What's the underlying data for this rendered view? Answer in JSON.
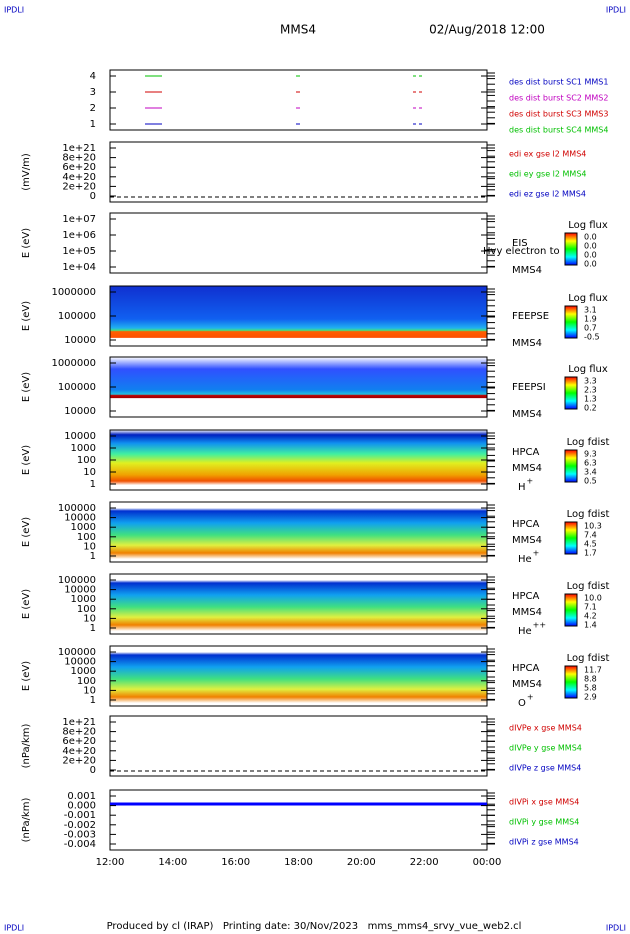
{
  "header": {
    "left": "IPDLI",
    "right": "IPDLI",
    "mission": "MMS4",
    "date": "02/Aug/2018 12:00"
  },
  "footer": {
    "left": "IPDLI",
    "right": "IPDLI",
    "text": "Produced by cl (IRAP)   Printing date: 30/Nov/2023   mms_mms4_srvy_vue_web2.cl"
  },
  "xticks": [
    "12:00",
    "14:00",
    "16:00",
    "18:00",
    "20:00",
    "22:00",
    "00:00"
  ],
  "panels": [
    {
      "yticks": [
        "4",
        "3",
        "2",
        "1"
      ],
      "legend": [
        {
          "text": "des dist burst SC1 MMS1",
          "color": "#0000c0"
        },
        {
          "text": "des dist burst SC2 MMS2",
          "color": "#c000c0"
        },
        {
          "text": "des dist burst SC3 MMS3",
          "color": "#d00000"
        },
        {
          "text": "des dist burst SC4 MMS4",
          "color": "#00c000"
        }
      ]
    },
    {
      "ylabel": "(mV/m)",
      "yticks": [
        "1e+21",
        "8e+20",
        "6e+20",
        "4e+20",
        "2e+20",
        "0"
      ],
      "legend": [
        {
          "text": "edi ex gse l2 MMS4",
          "color": "#d00000"
        },
        {
          "text": "edi ey gse l2 MMS4",
          "color": "#00c000"
        },
        {
          "text": "edi ez gse l2 MMS4",
          "color": "#0000c0"
        }
      ]
    },
    {
      "ylabel": "E (eV)",
      "yticks": [
        "1e+07",
        "1e+06",
        "1e+05",
        "1e+04"
      ],
      "side": [
        "EIS",
        "MMS4"
      ],
      "note": "Hvy electron to",
      "colorbar": {
        "title": "Log flux",
        "ticks": [
          "0.0",
          "0.0",
          "0.0",
          "0.0"
        ]
      }
    },
    {
      "ylabel": "E (eV)",
      "yticks": [
        "1000000",
        "100000",
        "10000"
      ],
      "side": [
        "FEEPSE",
        "MMS4"
      ],
      "colorbar": {
        "title": "Log flux",
        "ticks": [
          "3.1",
          "1.9",
          "0.7",
          "-0.5"
        ]
      }
    },
    {
      "ylabel": "E (eV)",
      "yticks": [
        "1000000",
        "100000",
        "10000"
      ],
      "side": [
        "FEEPSI",
        "MMS4"
      ],
      "colorbar": {
        "title": "Log flux",
        "ticks": [
          "3.3",
          "2.3",
          "1.3",
          "0.2"
        ]
      }
    },
    {
      "ylabel": "E (eV)",
      "yticks": [
        "10000",
        "1000",
        "100",
        "10",
        "1"
      ],
      "side": [
        "HPCA",
        "MMS4"
      ],
      "ion": "H",
      "sup": "+",
      "colorbar": {
        "title": "Log fdist",
        "ticks": [
          "9.3",
          "6.3",
          "3.4",
          "0.5"
        ]
      }
    },
    {
      "ylabel": "E (eV)",
      "yticks": [
        "100000",
        "10000",
        "1000",
        "100",
        "10",
        "1"
      ],
      "side": [
        "HPCA",
        "MMS4"
      ],
      "ion": "He",
      "sup": "+",
      "colorbar": {
        "title": "Log fdist",
        "ticks": [
          "10.3",
          "7.4",
          "4.5",
          "1.7"
        ]
      }
    },
    {
      "ylabel": "E (eV)",
      "yticks": [
        "100000",
        "10000",
        "1000",
        "100",
        "10",
        "1"
      ],
      "side": [
        "HPCA",
        "MMS4"
      ],
      "ion": "He",
      "sup": "++",
      "colorbar": {
        "title": "Log fdist",
        "ticks": [
          "10.0",
          "7.1",
          "4.2",
          "1.4"
        ]
      }
    },
    {
      "ylabel": "E (eV)",
      "yticks": [
        "100000",
        "10000",
        "1000",
        "100",
        "10",
        "1"
      ],
      "side": [
        "HPCA",
        "MMS4"
      ],
      "ion": "O",
      "sup": "+",
      "colorbar": {
        "title": "Log fdist",
        "ticks": [
          "11.7",
          "8.8",
          "5.8",
          "2.9"
        ]
      }
    },
    {
      "ylabel": "(nPa/km)",
      "yticks": [
        "1e+21",
        "8e+20",
        "6e+20",
        "4e+20",
        "2e+20",
        "0"
      ],
      "legend": [
        {
          "text": "dIVPe x gse MMS4",
          "color": "#d00000"
        },
        {
          "text": "dIVPe y gse MMS4",
          "color": "#00c000"
        },
        {
          "text": "dIVPe z gse MMS4",
          "color": "#0000c0"
        }
      ]
    },
    {
      "ylabel": "(nPa/km)",
      "yticks": [
        "0.001",
        "0.000",
        "-0.001",
        "-0.002",
        "-0.003",
        "-0.004"
      ],
      "legend": [
        {
          "text": "dIVPi x gse MMS4",
          "color": "#d00000"
        },
        {
          "text": "dIVPi y gse MMS4",
          "color": "#00c000"
        },
        {
          "text": "dIVPi z gse MMS4",
          "color": "#0000c0"
        }
      ]
    }
  ]
}
